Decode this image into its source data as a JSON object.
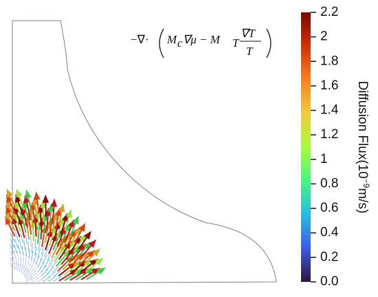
{
  "chart_data": {
    "type": "vector-field",
    "formula": {
      "prefix": "−∇·",
      "m1": "M",
      "sub1": "c",
      "mid": "∇μ − M",
      "sub2": "T",
      "num": "∇T",
      "den": "T"
    },
    "colorbar": {
      "label": "Diffusion Flux(10",
      "label_sup": "−9",
      "label_end": "m/s)",
      "clim": [
        0,
        2.2
      ],
      "ticks": [
        {
          "value": 0,
          "label": "0.0"
        },
        0.2,
        0.4,
        0.6,
        0.8,
        1,
        1.2,
        1.4,
        1.6,
        1.8,
        2,
        2.2
      ],
      "colormap": [
        "#30123b",
        "#3e5be6",
        "#26bce1",
        "#46f783",
        "#a4fc3c",
        "#f0cc3a",
        "#fb8022",
        "#d23105",
        "#7a0403"
      ]
    }
  }
}
